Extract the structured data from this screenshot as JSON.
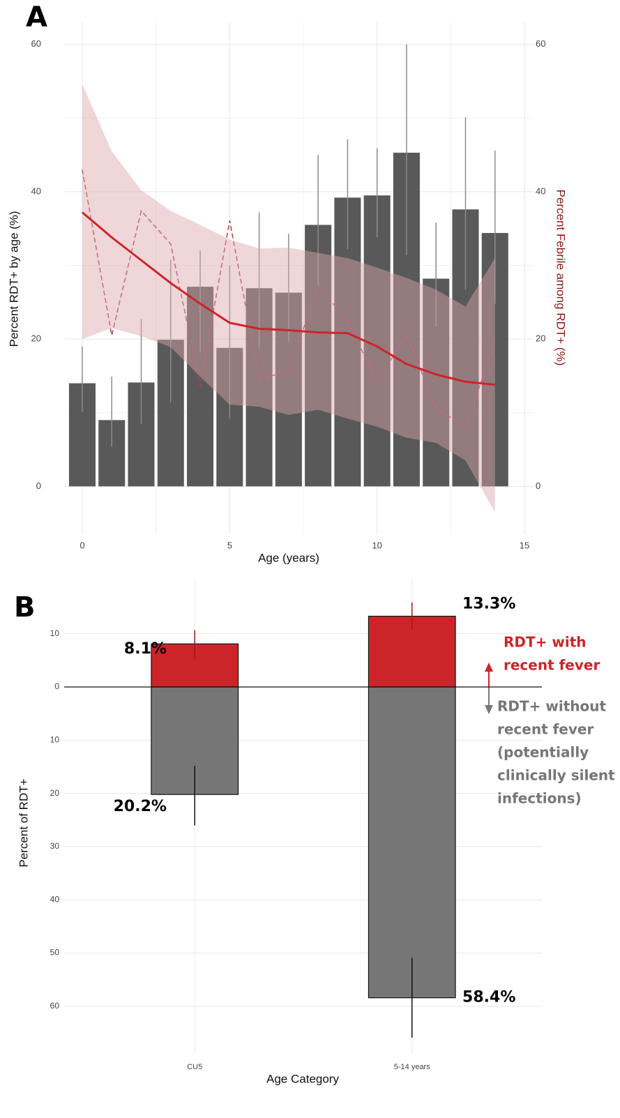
{
  "chart_data": [
    {
      "type": "bar",
      "panel_label": "A",
      "xlabel": "Age (years)",
      "ylabel": "Percent RDT+ by age (%)",
      "y2label": "Percent Febrile among RDT+ (%)",
      "x": [
        0,
        1,
        2,
        3,
        4,
        5,
        6,
        7,
        8,
        9,
        10,
        11,
        12,
        13,
        14
      ],
      "xlim": [
        -0.6,
        15.3
      ],
      "xticks": [
        0,
        5,
        10,
        15
      ],
      "ylim": [
        -6.5,
        63
      ],
      "yticks": [
        0,
        20,
        40,
        60
      ],
      "y2lim": [
        -6.5,
        63
      ],
      "y2ticks": [
        0,
        20,
        40,
        60
      ],
      "grid": true,
      "y2_color": "#8b1a1a",
      "series": [
        {
          "type": "bar",
          "color": "#595959",
          "error_color": "#8c8c8c",
          "values": [
            14.0,
            9.0,
            14.1,
            19.9,
            27.1,
            18.8,
            26.9,
            26.3,
            35.5,
            39.2,
            39.5,
            45.3,
            28.2,
            37.6,
            34.4
          ],
          "error_low": [
            10.1,
            5.4,
            8.5,
            11.4,
            18.2,
            9.2,
            18.7,
            19.6,
            27.2,
            32.2,
            33.8,
            31.4,
            21.7,
            26.7,
            24.8
          ],
          "error_high": [
            19.0,
            14.9,
            22.7,
            30.8,
            32.0,
            30.0,
            37.2,
            34.3,
            45.0,
            47.1,
            45.9,
            60.0,
            35.8,
            50.1,
            45.6
          ]
        },
        {
          "type": "line",
          "axis": "y2",
          "color": "#b5404a",
          "dashed": true,
          "values": [
            43.0,
            20.5,
            37.4,
            32.9,
            13.6,
            36.1,
            14.6,
            15.6,
            27.2,
            22.5,
            14.2,
            20.6,
            10.6,
            8.1,
            19.6
          ]
        },
        {
          "type": "smooth",
          "axis": "y2",
          "color": "#cc2529",
          "band_color": "#d9a3aa",
          "values": [
            37.2,
            33.8,
            30.7,
            27.6,
            24.8,
            22.2,
            21.4,
            21.2,
            20.9,
            20.8,
            19.0,
            16.6,
            15.2,
            14.2,
            13.8
          ],
          "band_low": [
            20.0,
            21.5,
            20.4,
            18.9,
            14.9,
            11.1,
            10.8,
            9.7,
            10.4,
            9.2,
            8.1,
            6.6,
            5.9,
            3.5,
            -3.5
          ],
          "band_high": [
            54.6,
            45.5,
            40.2,
            37.4,
            35.5,
            33.5,
            32.3,
            32.4,
            31.7,
            31.0,
            29.7,
            28.3,
            26.7,
            24.4,
            31.0
          ]
        }
      ]
    },
    {
      "type": "diverging_bar",
      "panel_label": "B",
      "xlabel": "Age Category",
      "ylabel": "Percent of RDT+",
      "categories": [
        "CU5",
        "5-14 years"
      ],
      "ylim": [
        -69,
        19
      ],
      "yticks": [
        {
          "value": -60,
          "label": "60"
        },
        {
          "value": -50,
          "label": "50"
        },
        {
          "value": -40,
          "label": "40"
        },
        {
          "value": -30,
          "label": "30"
        },
        {
          "value": -20,
          "label": "20"
        },
        {
          "value": -10,
          "label": "10"
        },
        0,
        10
      ],
      "grid": true,
      "series": [
        {
          "color": "#cc2529",
          "error_color": "#a01818",
          "values": [
            8.1,
            13.3
          ],
          "value_labels": [
            "8.1%",
            "13.3%"
          ],
          "error_low": [
            5.2,
            10.7
          ],
          "error_high": [
            10.7,
            15.9
          ],
          "annotation": [
            "RDT+ with",
            "recent fever"
          ]
        },
        {
          "color": "#767676",
          "error_color": "#111111",
          "values": [
            -20.2,
            -58.4
          ],
          "value_labels": [
            "20.2%",
            "58.4%"
          ],
          "error_low": [
            -26.0,
            -65.9
          ],
          "error_high": [
            -14.8,
            -50.9
          ],
          "annotation": [
            "RDT+ without",
            "recent fever",
            "(potentially",
            "clinically silent",
            "infections)"
          ]
        }
      ]
    }
  ]
}
